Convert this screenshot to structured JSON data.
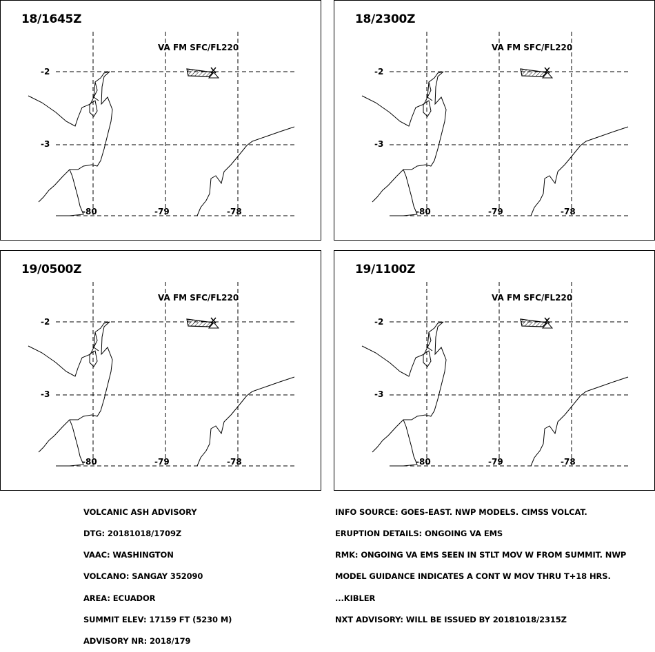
{
  "panels": [
    {
      "time": "18/1645Z",
      "va_label": "VA FM SFC/FL220",
      "lat_labels": [
        "-2",
        "-3"
      ],
      "lon_labels": [
        "-80",
        "-79",
        "-78"
      ]
    },
    {
      "time": "18/2300Z",
      "va_label": "VA FM SFC/FL220",
      "lat_labels": [
        "-2",
        "-3"
      ],
      "lon_labels": [
        "-80",
        "-79",
        "-78"
      ]
    },
    {
      "time": "19/0500Z",
      "va_label": "VA FM SFC/FL220",
      "lat_labels": [
        "-2",
        "-3"
      ],
      "lon_labels": [
        "-80",
        "-79",
        "-78"
      ]
    },
    {
      "time": "19/1100Z",
      "va_label": "VA FM SFC/FL220",
      "lat_labels": [
        "-2",
        "-3"
      ],
      "lon_labels": [
        "-80",
        "-79",
        "-78"
      ]
    }
  ],
  "advisory_left": [
    "VOLCANIC ASH ADVISORY",
    "DTG: 20181018/1709Z",
    "VAAC: WASHINGTON",
    "VOLCANO: SANGAY 352090",
    "AREA: ECUADOR",
    "SUMMIT ELEV: 17159 FT (5230 M)",
    "ADVISORY NR: 2018/179"
  ],
  "advisory_right": [
    "INFO SOURCE: GOES-EAST. NWP MODELS. CIMSS VOLCAT.",
    "ERUPTION DETAILS: ONGOING VA EMS",
    "RMK: ONGOING VA EMS SEEN IN STLT MOV W FROM SUMMIT. NWP",
    "MODEL GUIDANCE INDICATES A CONT W MOV THRU T+18 HRS.",
    "...KIBLER",
    "NXT ADVISORY: WILL BE ISSUED BY 20181018/2315Z"
  ]
}
